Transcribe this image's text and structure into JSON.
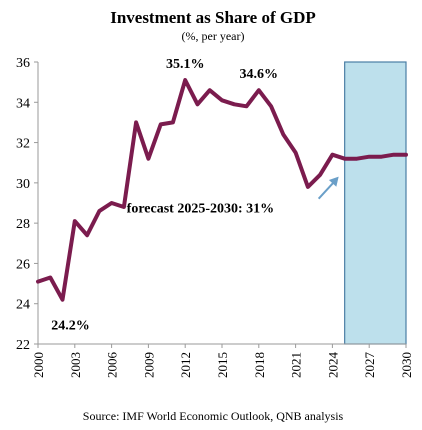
{
  "chart_data": {
    "type": "line",
    "title": "Investment as Share of GDP",
    "subtitle": "(%, per year)",
    "source": "Source: IMF World Economic Outlook, QNB analysis",
    "xlabel": "",
    "ylabel": "",
    "xlim": [
      2000,
      2030
    ],
    "ylim": [
      22,
      36
    ],
    "yticks": [
      22,
      24,
      26,
      28,
      30,
      32,
      34,
      36
    ],
    "xticks": [
      2000,
      2003,
      2006,
      2009,
      2012,
      2015,
      2018,
      2021,
      2024,
      2027,
      2030
    ],
    "grid": false,
    "legend": "none",
    "forecast_region": {
      "start": 2025,
      "end": 2030,
      "fill_color": "#bde0ec",
      "border_color": "#4a7ea5"
    },
    "series": [
      {
        "color": "#7b1c4e",
        "x": [
          2000,
          2001,
          2002,
          2003,
          2004,
          2005,
          2006,
          2007,
          2008,
          2009,
          2010,
          2011,
          2012,
          2013,
          2014,
          2015,
          2016,
          2017,
          2018,
          2019,
          2020,
          2021,
          2022,
          2023,
          2024,
          2025,
          2026,
          2027,
          2028,
          2029,
          2030
        ],
        "y": [
          25.1,
          25.3,
          24.2,
          28.1,
          27.4,
          28.6,
          29.0,
          28.8,
          33.0,
          31.2,
          32.9,
          33.0,
          35.1,
          33.9,
          34.6,
          34.1,
          33.9,
          33.8,
          34.6,
          33.8,
          32.4,
          31.5,
          29.8,
          30.4,
          31.4,
          31.2,
          31.2,
          31.3,
          31.3,
          31.4,
          31.4
        ]
      }
    ],
    "annotations": [
      {
        "text": "35.1%",
        "x": 2012,
        "y": 35.1
      },
      {
        "text": "34.6%",
        "x": 2018,
        "y": 34.6
      },
      {
        "text": "24.2%",
        "x": 2002,
        "y": 24.2
      },
      {
        "text": "forecast 2025-2030: 31%",
        "x": 2025,
        "y": 31.2
      }
    ],
    "arrow_color": "#6a9fc8"
  }
}
